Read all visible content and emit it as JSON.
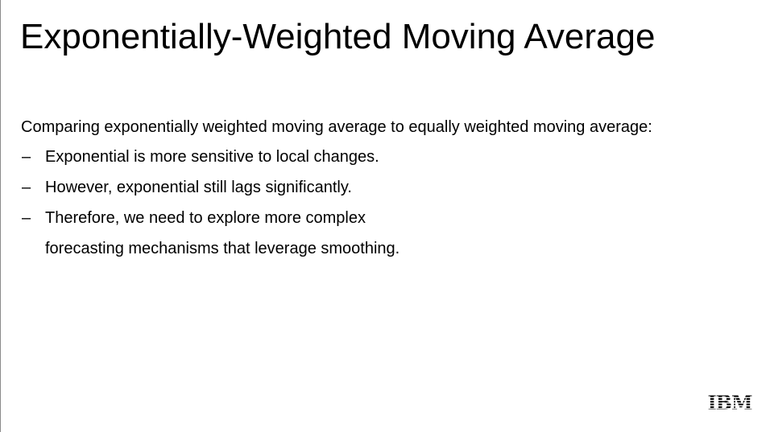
{
  "slide": {
    "title": "Exponentially-Weighted Moving Average",
    "intro": "Comparing exponentially weighted moving average to equally weighted moving average:",
    "bullets": [
      {
        "dash": "–",
        "text": "Exponential is more sensitive to local changes.",
        "cont": ""
      },
      {
        "dash": "–",
        "text": "However, exponential still lags significantly.",
        "cont": ""
      },
      {
        "dash": "–",
        "text": "Therefore, we need to explore more complex",
        "cont": "forecasting mechanisms that leverage smoothing."
      }
    ],
    "logo": {
      "text": "IBM",
      "icon": "ibm-logo",
      "color": "#000000"
    }
  }
}
